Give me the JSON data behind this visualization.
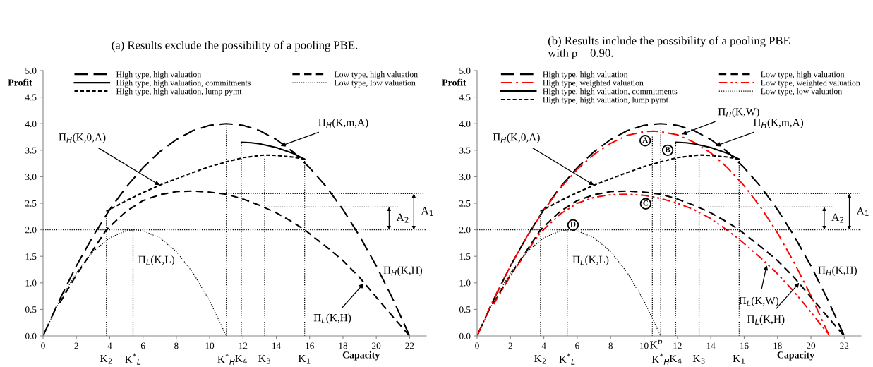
{
  "chart_data": [
    {
      "type": "line",
      "title": "(a) Results exclude the possibility of a pooling PBE.",
      "xlabel": "Capacity",
      "ylabel": "Profit",
      "xlim": [
        0,
        23
      ],
      "xticks": [
        0,
        2,
        4,
        6,
        8,
        10,
        12,
        14,
        16,
        18,
        20,
        22
      ],
      "ylim": [
        0,
        5
      ],
      "yticks": [
        {
          "value": 0,
          "label": "0.0"
        },
        {
          "value": 0.5,
          "label": "0.5"
        },
        {
          "value": 1,
          "label": "1.0"
        },
        {
          "value": 1.5,
          "label": "1.5"
        },
        {
          "value": 2,
          "label": "2.0"
        },
        {
          "value": 2.5,
          "label": "2.5"
        },
        {
          "value": 3,
          "label": "3.0"
        },
        {
          "value": 3.5,
          "label": "3.5"
        },
        {
          "value": 4,
          "label": "4.0"
        },
        {
          "value": 4.5,
          "label": "4.5"
        },
        {
          "value": 5,
          "label": "5.0"
        }
      ],
      "grid": false,
      "legend": "top",
      "marker": "none",
      "series": [
        {
          "name": "High type, high valuation",
          "color": "#000000",
          "line_style": "longdash",
          "x": [
            0,
            1,
            2,
            3,
            4,
            5,
            6,
            7,
            8,
            9,
            10,
            11,
            12,
            13,
            14,
            15,
            16,
            17,
            18,
            19,
            20,
            21,
            22
          ],
          "values": [
            0,
            0.69,
            1.32,
            1.88,
            2.38,
            2.81,
            3.17,
            3.47,
            3.7,
            3.87,
            3.97,
            4.0,
            3.97,
            3.87,
            3.7,
            3.47,
            3.17,
            2.81,
            2.38,
            1.88,
            1.32,
            0.69,
            0
          ]
        },
        {
          "name": "High type, high valuation, commitments",
          "color": "#000000",
          "line_style": "solid",
          "x": [
            11.9,
            12.5,
            13,
            14,
            15,
            15.7
          ],
          "values": [
            3.65,
            3.64,
            3.62,
            3.55,
            3.44,
            3.33
          ]
        },
        {
          "name": "High type, high valuation, lump pymt",
          "color": "#000000",
          "line_style": "shortdash",
          "x": [
            3.8,
            5,
            6,
            7,
            8,
            9,
            10,
            11,
            12,
            13.3,
            14,
            15,
            15.7
          ],
          "values": [
            2.35,
            2.55,
            2.7,
            2.84,
            2.96,
            3.08,
            3.19,
            3.28,
            3.36,
            3.41,
            3.4,
            3.37,
            3.33
          ]
        },
        {
          "name": "Low type, high valuation",
          "color": "#000000",
          "line_style": "dashed",
          "x": [
            1,
            2,
            3,
            3.8,
            5,
            6,
            7,
            8,
            9,
            10,
            11,
            12,
            13,
            14,
            15,
            15.7,
            17,
            18,
            19,
            20,
            21,
            22
          ],
          "values": [
            0.62,
            1.15,
            1.62,
            2.0,
            2.35,
            2.55,
            2.66,
            2.72,
            2.73,
            2.71,
            2.67,
            2.58,
            2.46,
            2.32,
            2.14,
            2.0,
            1.68,
            1.42,
            1.1,
            0.73,
            0.36,
            0
          ]
        },
        {
          "name": "Low type, low valuation",
          "color": "#000000",
          "line_style": "dotted",
          "x": [
            0,
            1,
            2,
            3,
            4,
            5,
            5.5,
            6,
            7,
            8,
            9,
            10,
            11
          ],
          "values": [
            0,
            0.66,
            1.19,
            1.59,
            1.85,
            1.98,
            2.0,
            1.98,
            1.85,
            1.59,
            1.19,
            0.66,
            0
          ]
        },
        {
          "color": "#000000",
          "line_style": "dotted",
          "x": [
            3.8,
            3.8
          ],
          "values": [
            0,
            2.35
          ]
        },
        {
          "color": "#000000",
          "line_style": "dotted",
          "x": [
            5.4,
            5.4
          ],
          "values": [
            0,
            2.0
          ]
        },
        {
          "color": "#000000",
          "line_style": "dotted",
          "x": [
            11,
            11
          ],
          "values": [
            0,
            4.0
          ]
        },
        {
          "color": "#000000",
          "line_style": "dotted",
          "x": [
            11.9,
            11.9
          ],
          "values": [
            0,
            3.65
          ]
        },
        {
          "color": "#000000",
          "line_style": "dotted",
          "x": [
            13.3,
            13.3
          ],
          "values": [
            0,
            3.41
          ]
        },
        {
          "color": "#000000",
          "line_style": "dotted",
          "x": [
            15.7,
            15.7
          ],
          "values": [
            0,
            3.33
          ]
        },
        {
          "color": "#000000",
          "line_style": "dotted",
          "x": [
            11,
            22.9
          ],
          "values": [
            2.68,
            2.68
          ]
        },
        {
          "color": "#000000",
          "line_style": "dotted",
          "x": [
            13.3,
            21.3
          ],
          "values": [
            2.43,
            2.43
          ]
        }
      ],
      "ref_lines": [
        {
          "axis": "y",
          "value": 2.0,
          "color": "#000000",
          "line_style": "dotted"
        }
      ],
      "annotations": [
        {
          "text": "Π$_{H}$(K,0,A)",
          "x": 7,
          "y": 2.84
        },
        {
          "text": "Π$_{H}$(K,m,A)",
          "x": 14.26,
          "y": 3.58
        },
        "Π$_{L}$(K,L)",
        "Π$_{H}$(K,H)",
        {
          "text": "Π$_{L}$(K,H)",
          "x": 19.25,
          "y": 0.99
        },
        {
          "text": "A$_{1}$",
          "x": 22.25,
          "y": 2.68
        },
        {
          "text": "A$_{2}$",
          "x": 20.77,
          "y": 2.43
        },
        {
          "text": "K$_{2}$",
          "x": 3.8,
          "y": 0
        },
        {
          "text": "K$^{*}$$_{L}$",
          "x": 5.4,
          "y": 0
        },
        {
          "text": "K$^{*}$$_{H}$",
          "x": 11,
          "y": 0
        },
        {
          "text": "K$_{4}$",
          "x": 11.9,
          "y": 0
        },
        {
          "text": "K$_{3}$",
          "x": 13.3,
          "y": 0
        },
        {
          "text": "K$_{1}$",
          "x": 15.7,
          "y": 0
        }
      ]
    },
    {
      "type": "line",
      "title": "(b) Results include the possibility of a pooling PBE\nwith ρ = 0.90.",
      "xlabel": "Capacity",
      "ylabel": "Profit",
      "xlim": [
        0,
        23
      ],
      "xticks": [
        0,
        2,
        4,
        6,
        8,
        10,
        12,
        14,
        16,
        18,
        20,
        22
      ],
      "ylim": [
        0,
        5
      ],
      "yticks": [
        {
          "value": 0,
          "label": "0.0"
        },
        {
          "value": 0.5,
          "label": "0.5"
        },
        {
          "value": 1,
          "label": "1.0"
        },
        {
          "value": 1.5,
          "label": "1.5"
        },
        {
          "value": 2,
          "label": "2.0"
        },
        {
          "value": 2.5,
          "label": "2.5"
        },
        {
          "value": 3,
          "label": "3.0"
        },
        {
          "value": 3.5,
          "label": "3.5"
        },
        {
          "value": 4,
          "label": "4.0"
        },
        {
          "value": 4.5,
          "label": "4.5"
        },
        {
          "value": 5,
          "label": "5.0"
        }
      ],
      "grid": false,
      "legend": "top",
      "marker": "none",
      "series": [
        {
          "name": "High type, high valuation",
          "color": "#000000",
          "line_style": "longdash",
          "x": [
            0,
            1,
            2,
            3,
            4,
            5,
            6,
            7,
            8,
            9,
            10,
            11,
            12,
            13,
            14,
            15,
            16,
            17,
            18,
            19,
            20,
            21,
            22
          ],
          "values": [
            0,
            0.69,
            1.32,
            1.88,
            2.38,
            2.81,
            3.17,
            3.47,
            3.7,
            3.87,
            3.97,
            4.0,
            3.97,
            3.87,
            3.7,
            3.47,
            3.17,
            2.81,
            2.38,
            1.88,
            1.32,
            0.69,
            0
          ]
        },
        {
          "name": "High type, weighted valuation",
          "color": "#ff0000",
          "line_style": "dashdot",
          "x": [
            0,
            1,
            2,
            3,
            4,
            5,
            6,
            7,
            8,
            9,
            10,
            10.55,
            11,
            12,
            13,
            14,
            15,
            16,
            17,
            18,
            19,
            20,
            21,
            21.1
          ],
          "values": [
            0,
            0.7,
            1.32,
            1.88,
            2.37,
            2.79,
            3.14,
            3.42,
            3.63,
            3.78,
            3.85,
            3.86,
            3.85,
            3.79,
            3.65,
            3.45,
            3.17,
            2.83,
            2.42,
            1.94,
            1.38,
            0.76,
            0.07,
            0
          ]
        },
        {
          "name": "High type, high valuation, commitments",
          "color": "#000000",
          "line_style": "solid",
          "x": [
            11.9,
            12.5,
            13,
            14,
            15,
            15.7
          ],
          "values": [
            3.65,
            3.64,
            3.62,
            3.55,
            3.44,
            3.33
          ]
        },
        {
          "name": "High type, high valuation, lump pymt",
          "color": "#000000",
          "line_style": "shortdash",
          "x": [
            3.8,
            5,
            6,
            7,
            8,
            9,
            10,
            11,
            12,
            13.3,
            14,
            15,
            15.7
          ],
          "values": [
            2.35,
            2.55,
            2.7,
            2.84,
            2.96,
            3.08,
            3.19,
            3.28,
            3.36,
            3.41,
            3.4,
            3.37,
            3.33
          ]
        },
        {
          "name": "Low type, high valuation",
          "color": "#000000",
          "line_style": "dashed",
          "x": [
            1,
            2,
            3,
            3.8,
            5,
            6,
            7,
            8,
            9,
            10,
            11,
            12,
            13,
            14,
            15,
            15.7,
            17,
            18,
            19,
            20,
            21,
            22
          ],
          "values": [
            0.62,
            1.15,
            1.62,
            2.0,
            2.35,
            2.55,
            2.66,
            2.72,
            2.73,
            2.71,
            2.67,
            2.58,
            2.46,
            2.32,
            2.14,
            2.0,
            1.68,
            1.42,
            1.1,
            0.73,
            0.36,
            0
          ]
        },
        {
          "name": "Low type, weighted valuation",
          "color": "#ff0000",
          "line_style": "dashdotdot",
          "x": [
            1,
            2,
            3,
            3.8,
            5,
            6,
            7,
            8,
            9,
            10,
            11,
            12,
            13,
            14,
            15,
            15.7,
            17,
            18,
            19,
            20,
            21,
            21.1
          ],
          "values": [
            0.6,
            1.13,
            1.6,
            1.95,
            2.3,
            2.5,
            2.61,
            2.66,
            2.67,
            2.65,
            2.59,
            2.5,
            2.38,
            2.21,
            1.99,
            1.82,
            1.47,
            1.17,
            0.83,
            0.45,
            0.05,
            0
          ]
        },
        {
          "name": "Low type, low valuation",
          "color": "#000000",
          "line_style": "dotted",
          "x": [
            0,
            1,
            2,
            3,
            4,
            5,
            5.5,
            6,
            7,
            8,
            9,
            10,
            11
          ],
          "values": [
            0,
            0.66,
            1.19,
            1.59,
            1.85,
            1.98,
            2.0,
            1.98,
            1.85,
            1.59,
            1.19,
            0.66,
            0
          ]
        },
        {
          "color": "#000000",
          "line_style": "dotted",
          "x": [
            3.8,
            3.8
          ],
          "values": [
            0,
            2.35
          ]
        },
        {
          "color": "#000000",
          "line_style": "dotted",
          "x": [
            5.4,
            5.4
          ],
          "values": [
            0,
            2.0
          ]
        },
        {
          "color": "#000000",
          "line_style": "dotted",
          "x": [
            10.5,
            10.5
          ],
          "values": [
            0,
            3.78
          ]
        },
        {
          "color": "#000000",
          "line_style": "dotted",
          "x": [
            11,
            11
          ],
          "values": [
            0,
            4.0
          ]
        },
        {
          "color": "#000000",
          "line_style": "dotted",
          "x": [
            11.9,
            11.9
          ],
          "values": [
            0,
            3.65
          ]
        },
        {
          "color": "#000000",
          "line_style": "dotted",
          "x": [
            13.3,
            13.3
          ],
          "values": [
            0,
            3.41
          ]
        },
        {
          "color": "#000000",
          "line_style": "dotted",
          "x": [
            15.7,
            15.7
          ],
          "values": [
            0,
            3.33
          ]
        },
        {
          "color": "#000000",
          "line_style": "dotted",
          "x": [
            11,
            22.9
          ],
          "values": [
            2.68,
            2.68
          ]
        },
        {
          "color": "#000000",
          "line_style": "dotted",
          "x": [
            13.3,
            21.3
          ],
          "values": [
            2.43,
            2.43
          ]
        }
      ],
      "ref_lines": [
        {
          "axis": "y",
          "value": 2.0,
          "color": "#000000",
          "line_style": "dotted"
        }
      ],
      "annotations": [
        {
          "text": "Π$_{H}$(K,W)",
          "x": 12.27,
          "y": 3.8
        },
        {
          "text": "Π$_{H}$(K,m,A)",
          "x": 14.3,
          "y": 3.58
        },
        {
          "text": "Π$_{H}$(K,0,A)",
          "x": 7,
          "y": 2.84
        },
        "Π$_{L}$(K,L)",
        "Π$_{H}$(K,H)",
        {
          "text": "Π$_{L}$(K,W)",
          "x": 17.35,
          "y": 1.33
        },
        {
          "text": "Π$_{L}$(K,H)",
          "x": 19.3,
          "y": 1.0
        },
        {
          "text": "A$_{1}$",
          "x": 22.3,
          "y": 2.68
        },
        {
          "text": "A$_{2}$",
          "x": 20.8,
          "y": 2.43
        },
        {
          "text": "A",
          "x": 10.07,
          "y": 3.68
        },
        {
          "text": "B",
          "x": 11.42,
          "y": 3.5
        },
        {
          "text": "C",
          "x": 10.1,
          "y": 2.49
        },
        {
          "text": "D",
          "x": 5.75,
          "y": 2.09
        },
        {
          "text": "K$_{2}$",
          "x": 3.8,
          "y": 0
        },
        {
          "text": "K$^{*}$$_{L}$",
          "x": 5.4,
          "y": 0
        },
        {
          "text": "K$^{p}$",
          "x": 10.5,
          "y": 0
        },
        {
          "text": "K$^{*}$$_{H}$",
          "x": 11,
          "y": 0
        },
        {
          "text": "K$_{4}$",
          "x": 11.9,
          "y": 0
        },
        {
          "text": "K$_{3}$",
          "x": 13.3,
          "y": 0
        },
        {
          "text": "K$_{1}$",
          "x": 15.7,
          "y": 0
        }
      ]
    }
  ]
}
